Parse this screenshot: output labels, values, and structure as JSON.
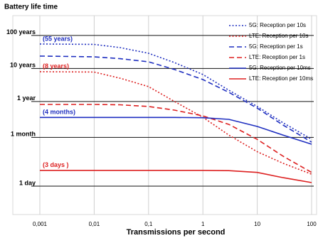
{
  "chart_data": {
    "type": "line",
    "title": "Battery life time",
    "x_label": "Transmissions per second",
    "x_log": true,
    "y_log": true,
    "x": [
      0.001,
      0.01,
      0.03,
      0.1,
      0.3,
      1,
      3,
      10,
      30,
      100
    ],
    "xlim": [
      0.001,
      100
    ],
    "xticks": [
      {
        "value": 0.001,
        "label": "0,001"
      },
      {
        "value": 0.01,
        "label": "0,01"
      },
      {
        "value": 0.1,
        "label": "0,1"
      },
      1,
      10,
      100
    ],
    "ylim": [
      0.138,
      145000
    ],
    "yticks": [
      {
        "value": 1,
        "label": "1 day"
      },
      {
        "value": 30,
        "label": "1 month"
      },
      {
        "value": 365,
        "label": "1 year"
      },
      {
        "value": 3650,
        "label": "10 years"
      },
      {
        "value": 36500,
        "label": "100 years"
      }
    ],
    "grid": true,
    "legend": "top-right",
    "series": [
      {
        "name": "5G: Reception per 10s",
        "color": "#1f2fc0",
        "style": "dotted",
        "values": [
          20075,
          19500,
          15600,
          10500,
          5500,
          2390,
          800,
          257,
          82,
          26.3
        ]
      },
      {
        "name": "LTE: Reception per 10s",
        "color": "#dd2020",
        "style": "dotted",
        "values": [
          2920,
          2850,
          1850,
          1030,
          365,
          122,
          35,
          11,
          4.9,
          2.3
        ]
      },
      {
        "name": "5G: Reception per 1s",
        "color": "#1f2fc0",
        "style": "dashed",
        "values": [
          8650,
          8200,
          7200,
          5800,
          3400,
          1680,
          690,
          230,
          70,
          21.5
        ]
      },
      {
        "name": "LTE: Reception per 1s",
        "color": "#dd2020",
        "style": "dashed",
        "values": [
          297,
          297,
          290,
          257,
          200,
          134,
          74,
          26,
          8,
          2.6
        ]
      },
      {
        "name": "5G: Reception per 10ms",
        "color": "#1f2fc0",
        "style": "solid",
        "values": [
          120,
          120,
          120,
          120,
          120,
          118,
          105,
          64,
          35,
          18.6
        ]
      },
      {
        "name": "LTE: Reception per 10ms",
        "color": "#dd2020",
        "style": "solid",
        "values": [
          3,
          3,
          3,
          3,
          3,
          3,
          2.95,
          2.6,
          1.8,
          1.28
        ]
      }
    ],
    "annotations": [
      "(55 years)",
      "(8 years)",
      "(4 months)",
      "(3 days )"
    ]
  }
}
